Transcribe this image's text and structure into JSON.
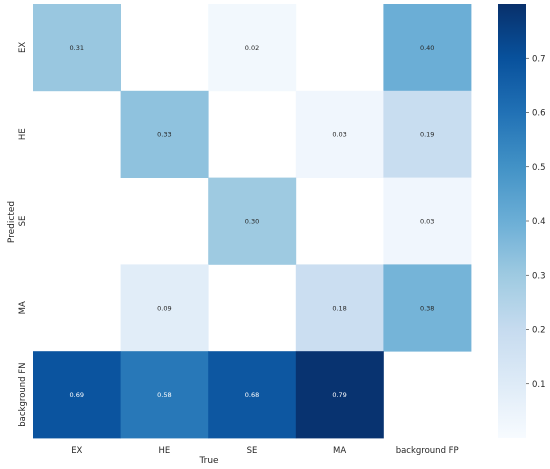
{
  "chart_data": {
    "type": "heatmap",
    "x_categories": [
      "EX",
      "HE",
      "SE",
      "MA",
      "background FP"
    ],
    "y_categories": [
      "EX",
      "HE",
      "SE",
      "MA",
      "background FN"
    ],
    "values": [
      [
        0.31,
        null,
        0.02,
        null,
        0.4
      ],
      [
        null,
        0.33,
        null,
        0.03,
        0.19
      ],
      [
        null,
        null,
        0.3,
        null,
        0.03
      ],
      [
        null,
        0.09,
        null,
        0.18,
        0.38
      ],
      [
        0.69,
        0.58,
        0.68,
        0.79,
        null
      ]
    ],
    "xlabel": "True",
    "ylabel": "Predicted",
    "colormap": "Blues",
    "vmin": 0.0,
    "vmax": 0.8,
    "colorbar_ticks": [
      "0.1",
      "0.2",
      "0.3",
      "0.4",
      "0.5",
      "0.6",
      "0.7"
    ],
    "colors": {
      "low": "#f7fbff",
      "high": "#08306b"
    }
  }
}
